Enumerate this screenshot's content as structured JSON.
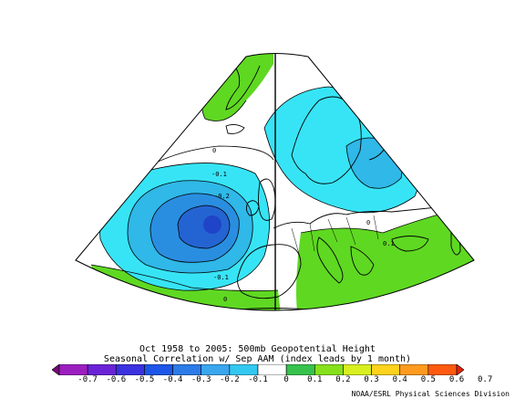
{
  "title_line1": "Oct 1958 to 2005: 500mb Geopotential Height",
  "title_line2": "Seasonal Correlation w/ Sep AAM (index leads by 1 month)",
  "credit": "NOAA/ESRL Physical Sciences Division",
  "colorbar": {
    "ticks": [
      "-0.7",
      "-0.6",
      "-0.5",
      "-0.4",
      "-0.3",
      "-0.2",
      "-0.1",
      "0",
      "0.1",
      "0.2",
      "0.3",
      "0.4",
      "0.5",
      "0.6",
      "0.7"
    ],
    "colors": [
      "#7a0a7a",
      "#9b1fbf",
      "#6a22d6",
      "#3b31e0",
      "#1d56e8",
      "#2c7be8",
      "#3aa6ee",
      "#33c8f0",
      "#ffffff",
      "#36c24d",
      "#86e01c",
      "#d8f01f",
      "#ffd21e",
      "#ff9a1e",
      "#ff5a0f",
      "#e4220b"
    ]
  },
  "contour_labels": [
    "0",
    "-0.1",
    "-0.2",
    "-0.1",
    "0",
    "0.1",
    "0"
  ],
  "palette": {
    "neg_01": "#37e4f5",
    "neg_02": "#2fb8e8",
    "neg_03": "#2a8ee0",
    "neg_04": "#2464d2",
    "neg_05": "#1f44c8",
    "pos_01": "#5fd822",
    "land_outline": "#000000"
  }
}
